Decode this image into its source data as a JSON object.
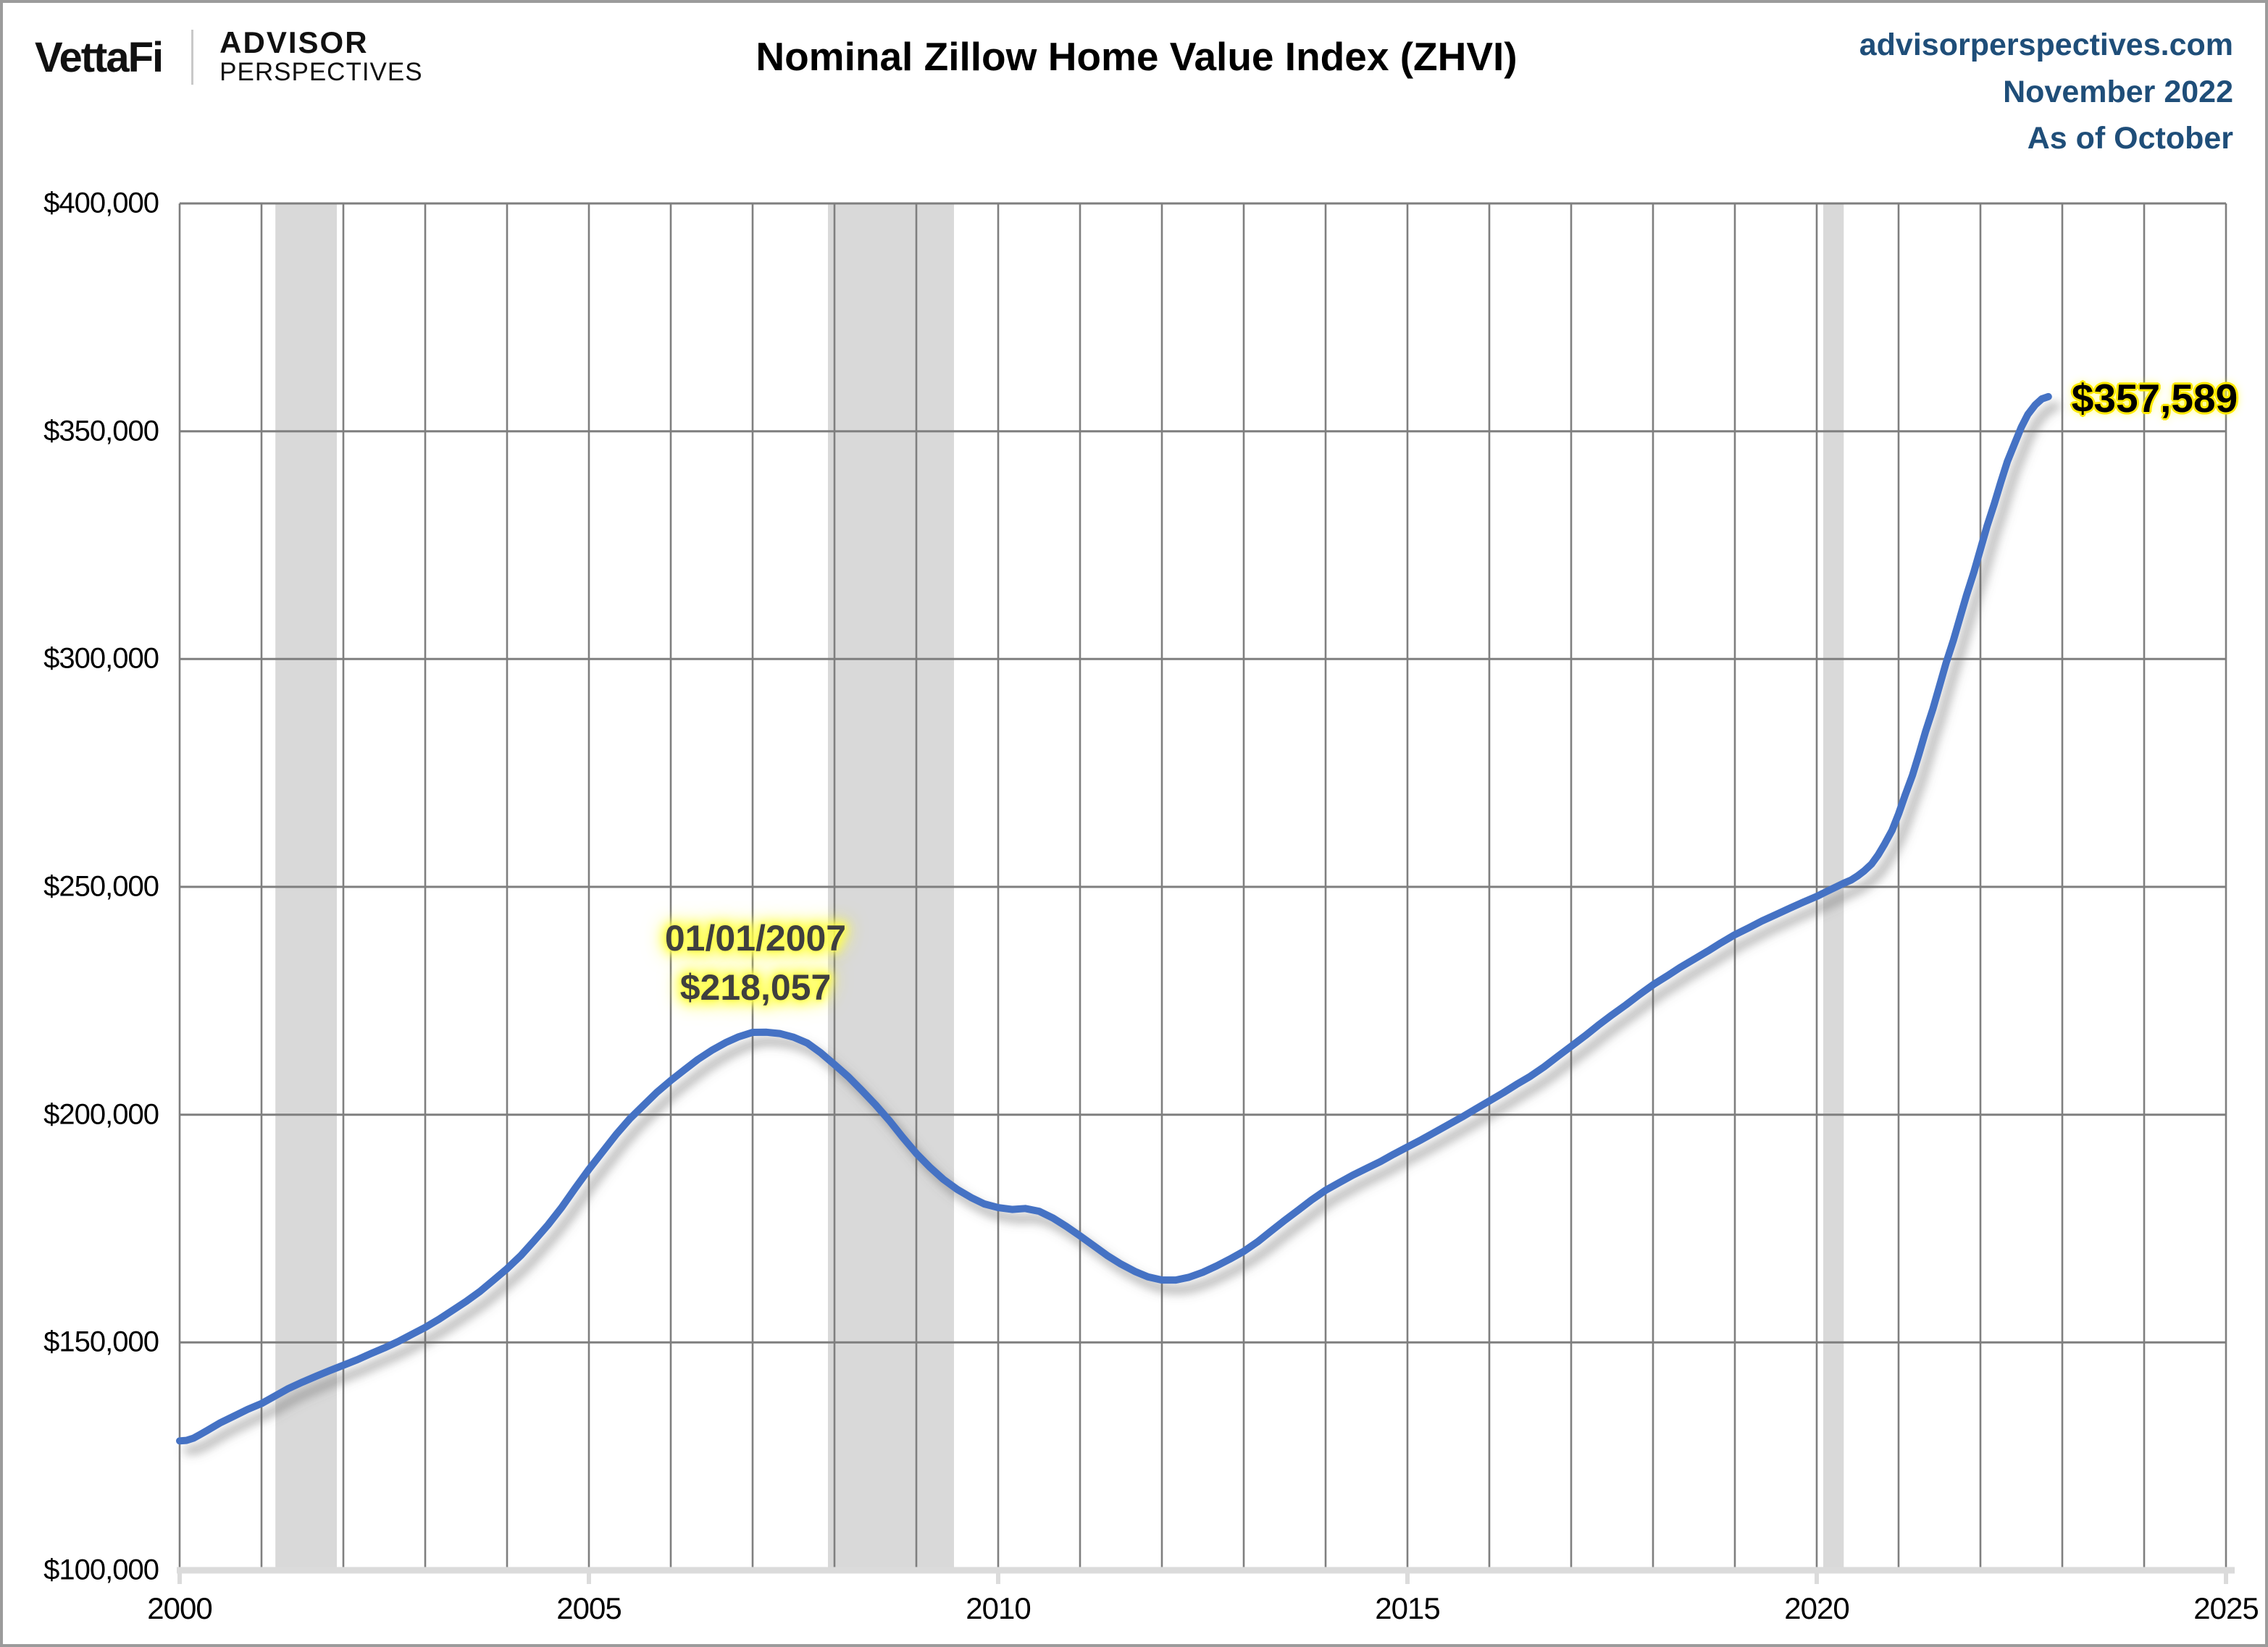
{
  "header": {
    "logo": {
      "brand": "VettaFi",
      "advisor_line1": "ADVISOR",
      "advisor_line2": "PERSPECTIVES"
    },
    "title": "Nominal Zillow Home Value Index (ZHVI)",
    "source": {
      "line1": "advisorperspectives.com",
      "line2": "November 2022",
      "line3": "As of October"
    }
  },
  "colors": {
    "line": "#4472C4",
    "recession_band": "#D9D9D9",
    "gridline": "#7F7F7F",
    "axis_line": "#DBDBDB",
    "highlight": "#FFFF4D",
    "source_text": "#1F4E79",
    "annotation_text": "#3F3F3F"
  },
  "chart_data": {
    "type": "line",
    "title": "Nominal Zillow Home Value Index (ZHVI)",
    "xlabel": "",
    "ylabel": "",
    "grid": "on",
    "legend": "none",
    "x_axis": {
      "min": 2000,
      "max": 2025,
      "gridline_interval_years": 1,
      "tick_values": [
        2000,
        2005,
        2010,
        2015,
        2020,
        2025
      ],
      "tick_labels": [
        "2000",
        "2005",
        "2010",
        "2015",
        "2020",
        "2025"
      ]
    },
    "y_axis": {
      "min": 100000,
      "max": 400000,
      "gridline_interval": 50000,
      "tick_values": [
        400000,
        350000,
        300000,
        250000,
        200000,
        150000,
        100000
      ],
      "tick_labels": [
        "$400,000",
        "$350,000",
        "$300,000",
        "$250,000",
        "$200,000",
        "$150,000",
        "$100,000"
      ]
    },
    "recessions": [
      {
        "start": 2001.17,
        "end": 2001.92
      },
      {
        "start": 2007.92,
        "end": 2009.46
      },
      {
        "start": 2020.08,
        "end": 2020.33
      }
    ],
    "annotations": {
      "peak": {
        "line1": "01/01/2007",
        "line2": "$218,057",
        "year": 2007.0,
        "value": 218057
      },
      "latest": {
        "label": "$357,589",
        "year": 2022.83,
        "value": 357589
      }
    },
    "series": [
      {
        "name": "Zillow Home Value Index",
        "color": "#4472C4",
        "points": [
          [
            2000.0,
            128400
          ],
          [
            2000.083,
            128500
          ],
          [
            2000.17,
            129000
          ],
          [
            2000.25,
            129800
          ],
          [
            2000.33,
            130600
          ],
          [
            2000.5,
            132400
          ],
          [
            2000.67,
            133900
          ],
          [
            2000.83,
            135300
          ],
          [
            2001.0,
            136600
          ],
          [
            2001.17,
            138300
          ],
          [
            2001.33,
            139900
          ],
          [
            2001.5,
            141300
          ],
          [
            2001.67,
            142600
          ],
          [
            2001.83,
            143800
          ],
          [
            2002.0,
            145000
          ],
          [
            2002.17,
            146200
          ],
          [
            2002.33,
            147500
          ],
          [
            2002.5,
            148800
          ],
          [
            2002.67,
            150200
          ],
          [
            2002.83,
            151700
          ],
          [
            2003.0,
            153300
          ],
          [
            2003.17,
            155100
          ],
          [
            2003.33,
            157000
          ],
          [
            2003.5,
            159000
          ],
          [
            2003.67,
            161200
          ],
          [
            2003.83,
            163600
          ],
          [
            2004.0,
            166200
          ],
          [
            2004.17,
            169100
          ],
          [
            2004.33,
            172300
          ],
          [
            2004.5,
            175800
          ],
          [
            2004.67,
            179700
          ],
          [
            2004.83,
            183800
          ],
          [
            2005.0,
            188000
          ],
          [
            2005.17,
            191900
          ],
          [
            2005.33,
            195600
          ],
          [
            2005.5,
            199100
          ],
          [
            2005.67,
            202100
          ],
          [
            2005.83,
            204900
          ],
          [
            2006.0,
            207500
          ],
          [
            2006.17,
            209900
          ],
          [
            2006.33,
            212100
          ],
          [
            2006.5,
            214100
          ],
          [
            2006.67,
            215800
          ],
          [
            2006.83,
            217100
          ],
          [
            2007.0,
            218057
          ],
          [
            2007.17,
            218100
          ],
          [
            2007.33,
            217800
          ],
          [
            2007.5,
            217000
          ],
          [
            2007.67,
            215700
          ],
          [
            2007.83,
            213600
          ],
          [
            2008.0,
            211000
          ],
          [
            2008.17,
            208300
          ],
          [
            2008.33,
            205400
          ],
          [
            2008.5,
            202200
          ],
          [
            2008.67,
            198700
          ],
          [
            2008.83,
            195100
          ],
          [
            2009.0,
            191500
          ],
          [
            2009.17,
            188400
          ],
          [
            2009.33,
            185800
          ],
          [
            2009.5,
            183600
          ],
          [
            2009.67,
            181800
          ],
          [
            2009.83,
            180400
          ],
          [
            2010.0,
            179600
          ],
          [
            2010.17,
            179200
          ],
          [
            2010.33,
            179400
          ],
          [
            2010.5,
            178800
          ],
          [
            2010.67,
            177300
          ],
          [
            2010.83,
            175500
          ],
          [
            2011.0,
            173400
          ],
          [
            2011.17,
            171200
          ],
          [
            2011.33,
            169100
          ],
          [
            2011.5,
            167200
          ],
          [
            2011.67,
            165600
          ],
          [
            2011.83,
            164400
          ],
          [
            2012.0,
            163700
          ],
          [
            2012.17,
            163700
          ],
          [
            2012.33,
            164300
          ],
          [
            2012.5,
            165400
          ],
          [
            2012.67,
            166800
          ],
          [
            2012.83,
            168300
          ],
          [
            2013.0,
            170000
          ],
          [
            2013.17,
            172100
          ],
          [
            2013.33,
            174400
          ],
          [
            2013.5,
            176800
          ],
          [
            2013.67,
            179100
          ],
          [
            2013.83,
            181300
          ],
          [
            2014.0,
            183400
          ],
          [
            2014.17,
            185100
          ],
          [
            2014.33,
            186700
          ],
          [
            2014.5,
            188200
          ],
          [
            2014.67,
            189700
          ],
          [
            2014.83,
            191300
          ],
          [
            2015.0,
            192900
          ],
          [
            2015.17,
            194500
          ],
          [
            2015.33,
            196100
          ],
          [
            2015.5,
            197800
          ],
          [
            2015.67,
            199500
          ],
          [
            2015.83,
            201200
          ],
          [
            2016.0,
            203000
          ],
          [
            2016.17,
            204800
          ],
          [
            2016.33,
            206600
          ],
          [
            2016.5,
            208400
          ],
          [
            2016.67,
            210500
          ],
          [
            2016.83,
            212700
          ],
          [
            2017.0,
            215000
          ],
          [
            2017.17,
            217300
          ],
          [
            2017.33,
            219600
          ],
          [
            2017.5,
            221900
          ],
          [
            2017.67,
            224100
          ],
          [
            2017.83,
            226300
          ],
          [
            2018.0,
            228500
          ],
          [
            2018.17,
            230400
          ],
          [
            2018.33,
            232300
          ],
          [
            2018.5,
            234100
          ],
          [
            2018.67,
            235900
          ],
          [
            2018.83,
            237700
          ],
          [
            2019.0,
            239500
          ],
          [
            2019.17,
            241000
          ],
          [
            2019.33,
            242500
          ],
          [
            2019.5,
            243900
          ],
          [
            2019.67,
            245300
          ],
          [
            2019.83,
            246600
          ],
          [
            2020.0,
            247900
          ],
          [
            2020.08,
            248600
          ],
          [
            2020.17,
            249400
          ],
          [
            2020.25,
            250100
          ],
          [
            2020.33,
            250800
          ],
          [
            2020.42,
            251500
          ],
          [
            2020.5,
            252400
          ],
          [
            2020.58,
            253500
          ],
          [
            2020.67,
            255000
          ],
          [
            2020.75,
            257000
          ],
          [
            2020.83,
            259400
          ],
          [
            2020.92,
            262400
          ],
          [
            2021.0,
            266000
          ],
          [
            2021.08,
            270100
          ],
          [
            2021.17,
            274500
          ],
          [
            2021.25,
            279200
          ],
          [
            2021.33,
            284100
          ],
          [
            2021.42,
            289100
          ],
          [
            2021.5,
            294100
          ],
          [
            2021.58,
            299100
          ],
          [
            2021.67,
            304100
          ],
          [
            2021.75,
            309100
          ],
          [
            2021.83,
            314000
          ],
          [
            2021.92,
            319100
          ],
          [
            2022.0,
            324100
          ],
          [
            2022.08,
            329100
          ],
          [
            2022.17,
            334100
          ],
          [
            2022.25,
            338900
          ],
          [
            2022.33,
            343400
          ],
          [
            2022.42,
            347400
          ],
          [
            2022.5,
            350900
          ],
          [
            2022.58,
            353700
          ],
          [
            2022.67,
            355800
          ],
          [
            2022.75,
            357100
          ],
          [
            2022.83,
            357589
          ]
        ]
      }
    ]
  }
}
